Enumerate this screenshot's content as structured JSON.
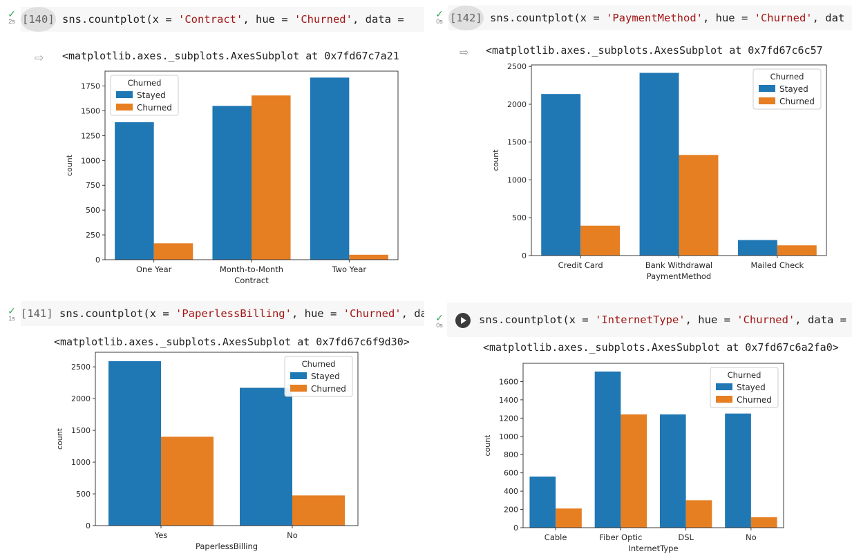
{
  "colors": {
    "stayed": "#1f77b4",
    "churned": "#e67e22"
  },
  "cells": [
    {
      "exec_count": "[140]",
      "time": "2s",
      "code_prefix": "sns.countplot(x = ",
      "x_arg": "'Contract'",
      "code_mid": ", hue = ",
      "hue_arg": "'Churned'",
      "code_suffix": ", data = ",
      "output": "<matplotlib.axes._subplots.AxesSubplot at 0x7fd67c7a21"
    },
    {
      "exec_count": "[142]",
      "time": "0s",
      "code_prefix": "sns.countplot(x = ",
      "x_arg": "'PaymentMethod'",
      "code_mid": ", hue = ",
      "hue_arg": "'Churned'",
      "code_suffix": ", dat",
      "output": "<matplotlib.axes._subplots.AxesSubplot at 0x7fd67c6c57"
    },
    {
      "exec_count": "[141]",
      "time": "1s",
      "code_prefix": "sns.countplot(x = ",
      "x_arg": "'PaperlessBilling'",
      "code_mid": ", hue = ",
      "hue_arg": "'Churned'",
      "code_suffix": ", data = ",
      "output": "<matplotlib.axes._subplots.AxesSubplot at 0x7fd67c6f9d30>"
    },
    {
      "exec_count": "",
      "time": "0s",
      "code_prefix": "sns.countplot(x = ",
      "x_arg": "'InternetType'",
      "code_mid": ", hue = ",
      "hue_arg": "'Churned'",
      "code_suffix": ", data = df_n",
      "output": "<matplotlib.axes._subplots.AxesSubplot at 0x7fd67c6a2fa0>"
    }
  ],
  "chart_data": [
    {
      "type": "bar",
      "categories": [
        "One Year",
        "Month-to-Month",
        "Two Year"
      ],
      "xlabel": "Contract",
      "ylabel": "count",
      "ylim": [
        0,
        1900
      ],
      "yticks": [
        0,
        250,
        500,
        750,
        1000,
        1250,
        1500,
        1750
      ],
      "legend_title": "Churned",
      "legend_position": "upper-left",
      "series": [
        {
          "name": "Stayed",
          "values": [
            1385,
            1550,
            1835
          ]
        },
        {
          "name": "Churned",
          "values": [
            165,
            1655,
            50
          ]
        }
      ]
    },
    {
      "type": "bar",
      "categories": [
        "Credit Card",
        "Bank Withdrawal",
        "Mailed Check"
      ],
      "xlabel": "PaymentMethod",
      "ylabel": "count",
      "ylim": [
        0,
        2520
      ],
      "yticks": [
        0,
        500,
        1000,
        1500,
        2000,
        2500
      ],
      "legend_title": "Churned",
      "legend_position": "upper-right",
      "series": [
        {
          "name": "Stayed",
          "values": [
            2135,
            2415,
            205
          ]
        },
        {
          "name": "Churned",
          "values": [
            395,
            1330,
            135
          ]
        }
      ]
    },
    {
      "type": "bar",
      "categories": [
        "Yes",
        "No"
      ],
      "xlabel": "PaperlessBilling",
      "ylabel": "count",
      "ylim": [
        0,
        2730
      ],
      "yticks": [
        0,
        500,
        1000,
        1500,
        2000,
        2500
      ],
      "legend_title": "Churned",
      "legend_position": "upper-right",
      "series": [
        {
          "name": "Stayed",
          "values": [
            2590,
            2170
          ]
        },
        {
          "name": "Churned",
          "values": [
            1400,
            475
          ]
        }
      ]
    },
    {
      "type": "bar",
      "categories": [
        "Cable",
        "Fiber Optic",
        "DSL",
        "No"
      ],
      "xlabel": "InternetType",
      "ylabel": "count",
      "ylim": [
        0,
        1800
      ],
      "yticks": [
        0,
        200,
        400,
        600,
        800,
        1000,
        1200,
        1400,
        1600
      ],
      "legend_title": "Churned",
      "legend_position": "upper-right",
      "series": [
        {
          "name": "Stayed",
          "values": [
            560,
            1710,
            1240,
            1250
          ]
        },
        {
          "name": "Churned",
          "values": [
            210,
            1240,
            300,
            115
          ]
        }
      ]
    }
  ]
}
